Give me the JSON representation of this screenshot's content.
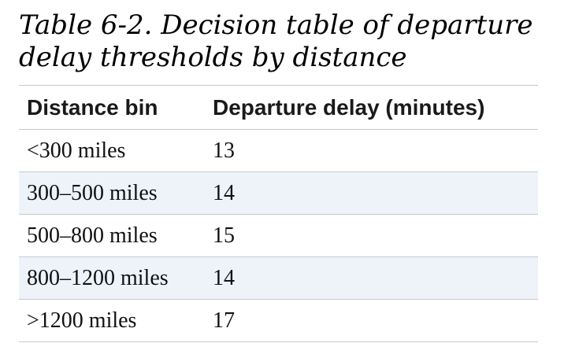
{
  "caption": {
    "line1": "Table 6-2. Decision table of departure",
    "line2": "delay thresholds by distance"
  },
  "table": {
    "headers": [
      "Distance bin",
      "Departure delay (minutes)"
    ],
    "rows": [
      [
        "<300 miles",
        "13"
      ],
      [
        "300–500 miles",
        "14"
      ],
      [
        "500–800 miles",
        "15"
      ],
      [
        "800–1200 miles",
        "14"
      ],
      [
        ">1200 miles",
        "17"
      ]
    ],
    "stripe_color": "#eef3fa"
  }
}
